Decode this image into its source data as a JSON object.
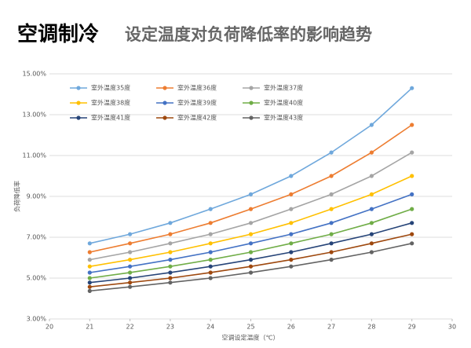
{
  "chart_data": {
    "type": "line",
    "title": "空调制冷",
    "subtitle": "设定温度对负荷降低率的影响趋势",
    "x_label": "空调设定温度（℃）",
    "y_label": "负荷降低率",
    "x": [
      21,
      22,
      23,
      24,
      25,
      26,
      27,
      28,
      29
    ],
    "xlim": [
      20,
      30
    ],
    "xticks": [
      20,
      21,
      22,
      23,
      24,
      25,
      26,
      27,
      28,
      29,
      30
    ],
    "ylim": [
      3,
      15
    ],
    "yticks": [
      {
        "value": 3,
        "label": "3.00%"
      },
      {
        "value": 5,
        "label": "5.00%"
      },
      {
        "value": 7,
        "label": "7.00%"
      },
      {
        "value": 9,
        "label": "9.00%"
      },
      {
        "value": 11,
        "label": "11.00%"
      },
      {
        "value": 13,
        "label": "13.00%"
      },
      {
        "value": 15,
        "label": "15.00%"
      }
    ],
    "grid": true,
    "legend": "top-left",
    "series": [
      {
        "name": "室外温度35度",
        "color": "#6fa8dc",
        "values": [
          6.7,
          7.15,
          7.7,
          8.38,
          9.1,
          10.0,
          11.15,
          12.5,
          14.3
        ]
      },
      {
        "name": "室外温度36度",
        "color": "#ed7d31",
        "values": [
          6.27,
          6.7,
          7.15,
          7.7,
          8.38,
          9.1,
          10.0,
          11.15,
          12.5
        ]
      },
      {
        "name": "室外温度37度",
        "color": "#a5a5a5",
        "values": [
          5.9,
          6.27,
          6.7,
          7.15,
          7.7,
          8.38,
          9.1,
          10.0,
          11.15
        ]
      },
      {
        "name": "室外温度38度",
        "color": "#ffc000",
        "values": [
          5.57,
          5.9,
          6.27,
          6.7,
          7.15,
          7.7,
          8.38,
          9.1,
          10.0
        ]
      },
      {
        "name": "室外温度39度",
        "color": "#4472c4",
        "values": [
          5.27,
          5.57,
          5.9,
          6.27,
          6.7,
          7.15,
          7.7,
          8.38,
          9.1
        ]
      },
      {
        "name": "室外温度40度",
        "color": "#70ad47",
        "values": [
          5.0,
          5.27,
          5.57,
          5.9,
          6.27,
          6.7,
          7.15,
          7.7,
          8.38
        ]
      },
      {
        "name": "室外温度41度",
        "color": "#264478",
        "values": [
          4.78,
          5.0,
          5.27,
          5.57,
          5.9,
          6.27,
          6.7,
          7.15,
          7.7
        ]
      },
      {
        "name": "室外温度42度",
        "color": "#9e480e",
        "values": [
          4.57,
          4.78,
          5.0,
          5.27,
          5.57,
          5.9,
          6.27,
          6.7,
          7.15
        ]
      },
      {
        "name": "室外温度43度",
        "color": "#636363",
        "values": [
          4.37,
          4.57,
          4.78,
          5.0,
          5.27,
          5.57,
          5.9,
          6.27,
          6.7
        ]
      }
    ]
  }
}
